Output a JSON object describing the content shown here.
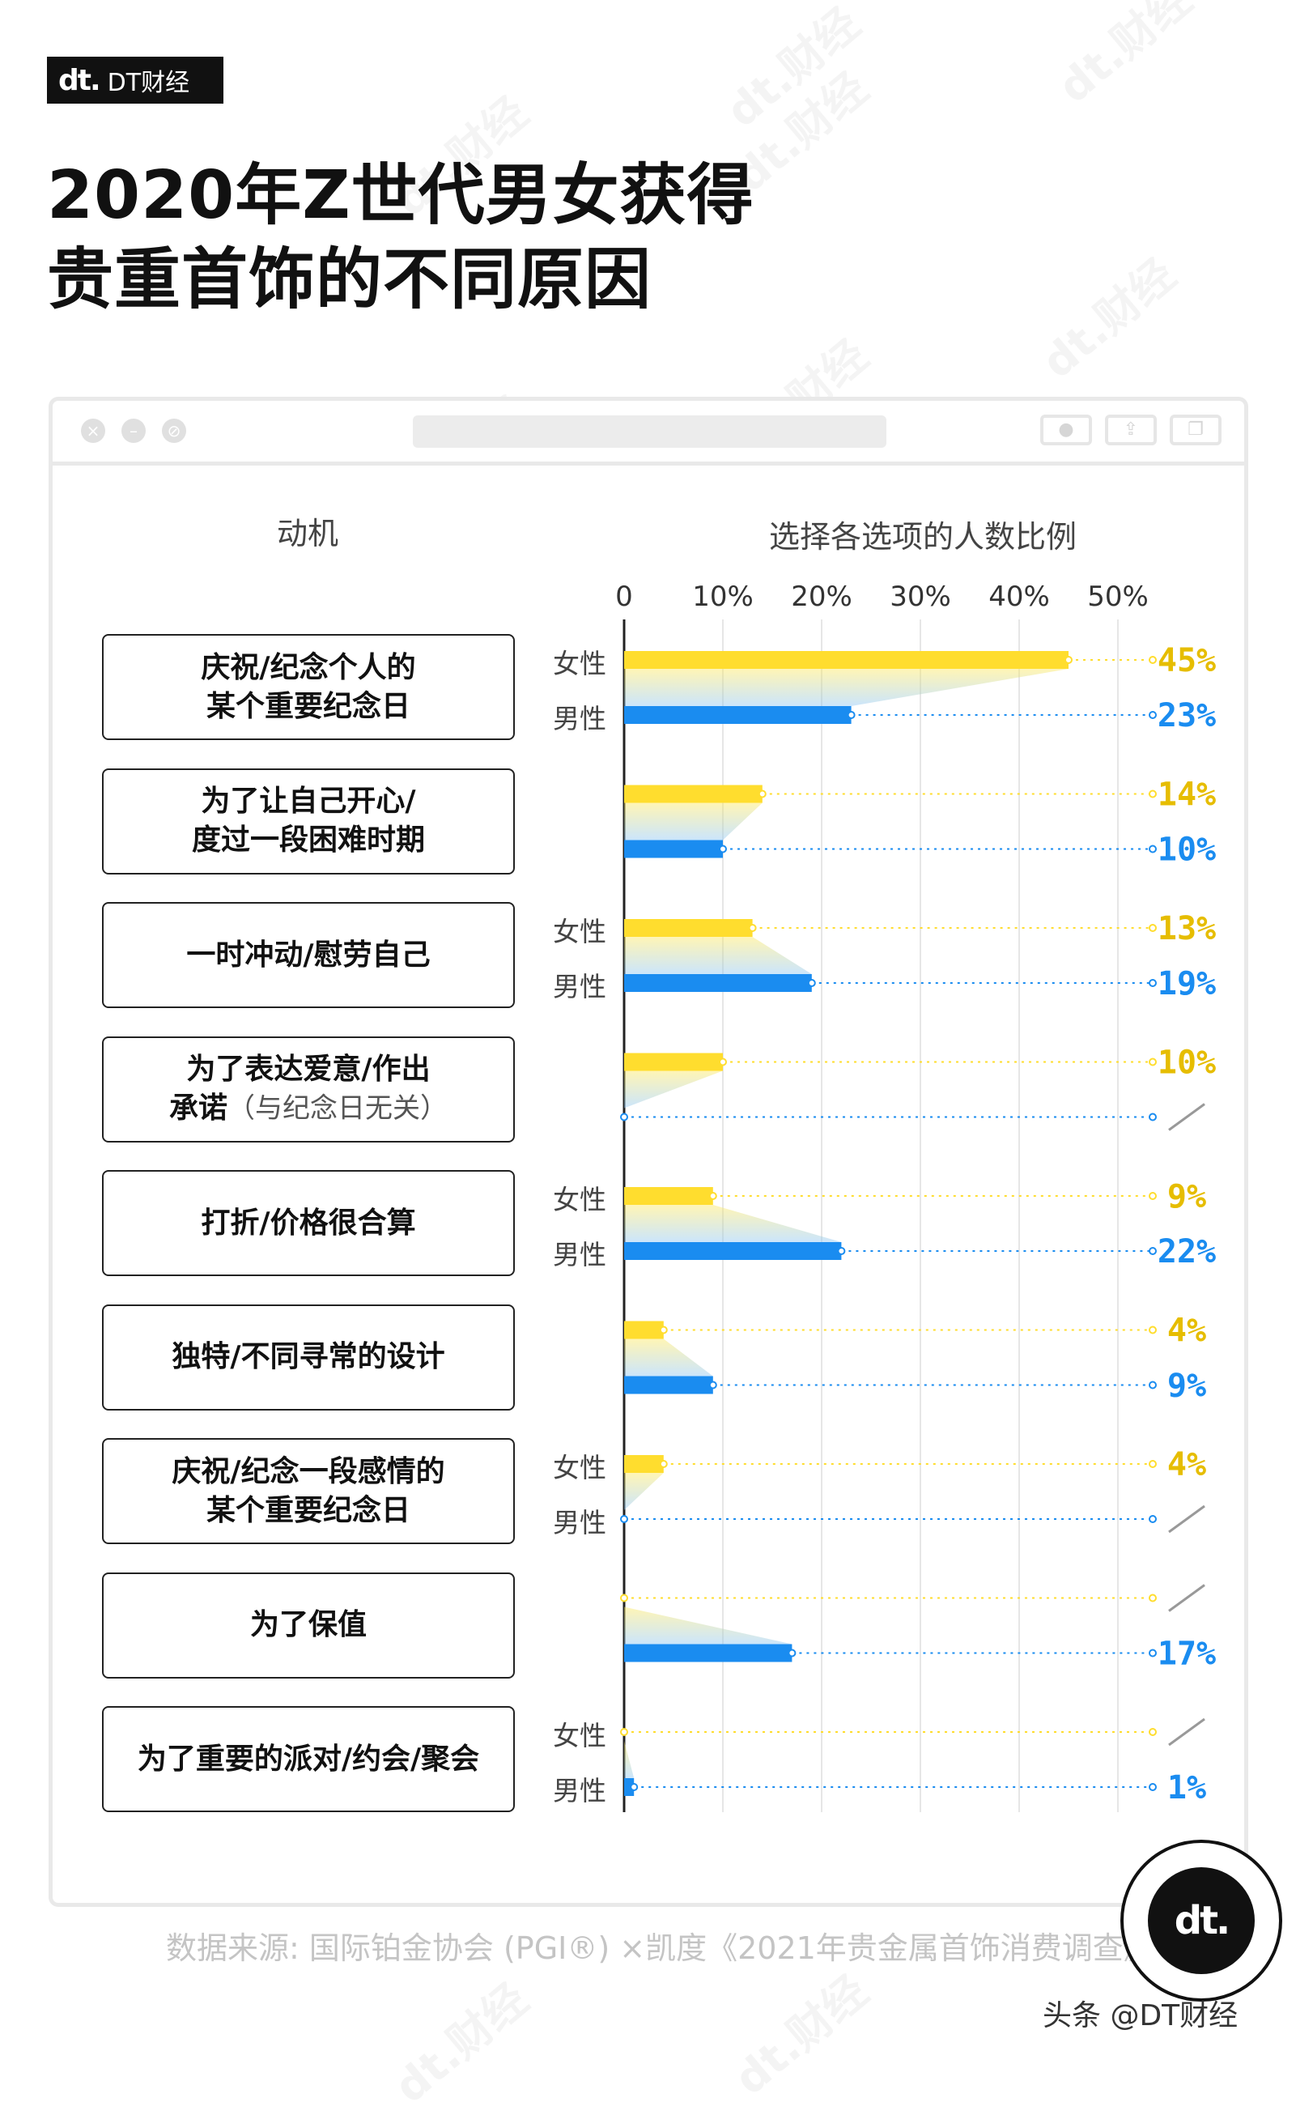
{
  "brand": {
    "logo": "dt.",
    "name": "DT财经"
  },
  "title_lines": [
    "2020年Z世代男女获得",
    "贵重首饰的不同原因"
  ],
  "watermark": "dt.财经",
  "headers": {
    "motive": "动机",
    "share": "选择各选项的人数比例"
  },
  "motives": [
    {
      "lines": [
        "庆祝/纪念个人的",
        "某个重要纪念日"
      ],
      "note": ""
    },
    {
      "lines": [
        "为了让自己开心/",
        "度过一段困难时期"
      ],
      "note": ""
    },
    {
      "lines": [
        "一时冲动/慰劳自己"
      ],
      "note": ""
    },
    {
      "lines": [
        "为了表达爱意/作出",
        "承诺"
      ],
      "note": "（与纪念日无关）"
    },
    {
      "lines": [
        "打折/价格很合算"
      ],
      "note": ""
    },
    {
      "lines": [
        "独特/不同寻常的设计"
      ],
      "note": ""
    },
    {
      "lines": [
        "庆祝/纪念一段感情的",
        "某个重要纪念日"
      ],
      "note": ""
    },
    {
      "lines": [
        "为了保值"
      ],
      "note": ""
    },
    {
      "lines": [
        "为了重要的派对/约会/聚会"
      ],
      "note": ""
    }
  ],
  "gender_labels": {
    "female": "女性",
    "male": "男性"
  },
  "gender_label_rows": [
    0,
    2,
    4,
    6,
    8
  ],
  "chart_data": {
    "type": "bar",
    "orientation": "horizontal",
    "title": "2020年Z世代男女获得贵重首饰的不同原因",
    "xlabel": "选择各选项的人数比例",
    "x_ticks": [
      "0",
      "10%",
      "20%",
      "30%",
      "40%",
      "50%"
    ],
    "xlim": [
      0,
      50
    ],
    "grid": true,
    "categories": [
      "庆祝/纪念个人的某个重要纪念日",
      "为了让自己开心/度过一段困难时期",
      "一时冲动/慰劳自己",
      "为了表达爱意/作出承诺（与纪念日无关）",
      "打折/价格很合算",
      "独特/不同寻常的设计",
      "庆祝/纪念一段感情的某个重要纪念日",
      "为了保值",
      "为了重要的派对/约会/聚会"
    ],
    "series": [
      {
        "name": "女性",
        "color": "#ffdd2e",
        "label_color": "#e6bd00",
        "values": [
          45,
          14,
          13,
          10,
          9,
          4,
          4,
          null,
          null
        ],
        "labels": [
          "45%",
          "14%",
          "13%",
          "10%",
          "9%",
          "4%",
          "4%",
          "/",
          "/"
        ]
      },
      {
        "name": "男性",
        "color": "#1a8cf0",
        "label_color": "#1a8cf0",
        "values": [
          23,
          10,
          19,
          null,
          22,
          9,
          null,
          17,
          1
        ],
        "labels": [
          "23%",
          "10%",
          "19%",
          "/",
          "22%",
          "9%",
          "/",
          "17%",
          "1%"
        ]
      }
    ]
  },
  "source": "数据来源: 国际铂金协会 (PGI®) ×凯度《2021年贵金属首饰消费调查》",
  "footer": "头条 @DT财经"
}
